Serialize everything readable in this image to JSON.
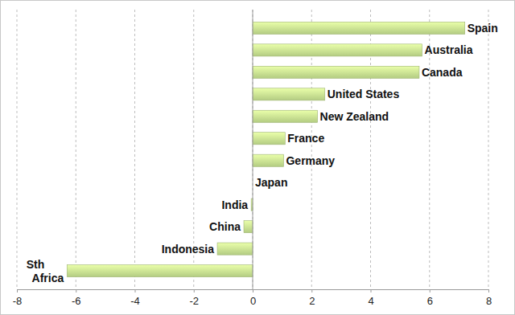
{
  "chart_data": {
    "type": "bar",
    "orientation": "horizontal",
    "categories": [
      "Spain",
      "Australia",
      "Canada",
      "United States",
      "New Zealand",
      "France",
      "Germany",
      "Japan",
      "India",
      "China",
      "Indonesia",
      "Sth\nAfrica"
    ],
    "values": [
      7.2,
      5.75,
      5.65,
      2.45,
      2.2,
      1.1,
      1.05,
      0,
      -0.05,
      -0.3,
      -1.2,
      -6.3
    ],
    "color": "#c4df8e",
    "xlim": [
      -8,
      8
    ],
    "xticks": [
      -8,
      -6,
      -4,
      -2,
      0,
      2,
      4,
      6,
      8
    ],
    "grid": true
  }
}
